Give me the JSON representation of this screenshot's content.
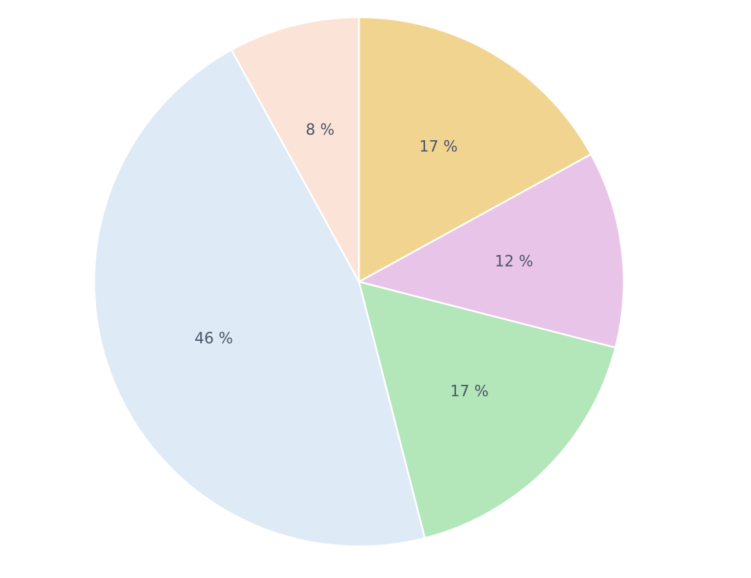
{
  "chart_data": {
    "type": "pie",
    "values": [
      17,
      12,
      17,
      46,
      8
    ],
    "value_labels": [
      "17 %",
      "12 %",
      "17 %",
      "46 %",
      "8 %"
    ],
    "colors": [
      "#f2d491",
      "#e9c4e9",
      "#b3e6b9",
      "#deeaf6",
      "#fbe4d7"
    ]
  }
}
